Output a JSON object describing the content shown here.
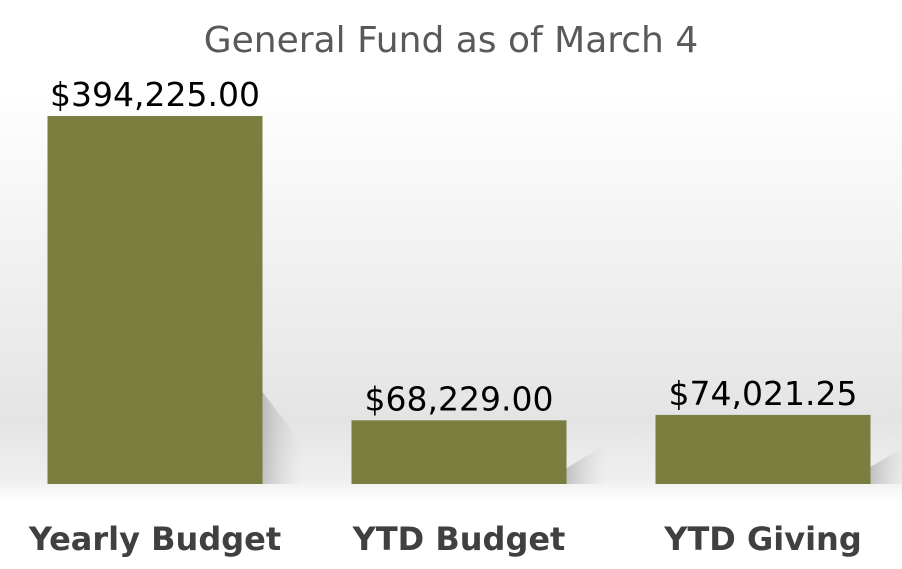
{
  "chart_data": {
    "type": "bar",
    "title": "General Fund as of March 4",
    "categories": [
      "Yearly Budget",
      "YTD Budget",
      "YTD Giving"
    ],
    "values": [
      394225.0,
      68229.0,
      74021.25
    ],
    "data_labels": [
      "$394,225.00",
      "$68,229.00",
      "$74,021.25"
    ],
    "bar_color": "#7a7f40",
    "ylim": [
      0,
      394225
    ],
    "grid": false,
    "legend": "none",
    "xlabel": "",
    "ylabel": ""
  }
}
